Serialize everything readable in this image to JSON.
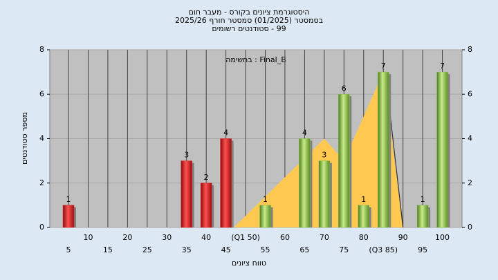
{
  "chart_data": {
    "type": "bar",
    "title_lines": [
      "היסטוגרמת ציונים בקורס - מעבר חום",
      "בסמסטר (01/2025) סמסטר חורף 2025/26",
      "99 - סטודנטים רשומים"
    ],
    "annotation": "Final_B : בחשימה",
    "x_label": "טווח ציונים",
    "y_label": "מספר סטודנטים",
    "xlim": [
      0.25,
      105
    ],
    "xticks": [
      5,
      10,
      15,
      20,
      25,
      30,
      35,
      40,
      45,
      {
        "value": 50,
        "label": "(Q1 50)"
      },
      55,
      60,
      65,
      70,
      75,
      80,
      {
        "value": 85,
        "label": "(Q3 85)"
      },
      90,
      95,
      100
    ],
    "ylim": [
      0,
      8
    ],
    "yticks": [
      0,
      2,
      4,
      6,
      8
    ],
    "y2lim": [
      0,
      8
    ],
    "y2ticks": [
      0,
      2,
      4,
      6,
      8
    ],
    "grid": true,
    "series": [
      {
        "color": "#e02828",
        "x": [
          5,
          35,
          40,
          45
        ],
        "values": [
          1,
          3,
          2,
          4
        ]
      },
      {
        "color": "#8cc04a",
        "x": [
          55,
          65,
          70,
          75,
          80,
          85,
          95,
          100
        ],
        "values": [
          1,
          4,
          3,
          6,
          1,
          7,
          1,
          7
        ]
      }
    ],
    "area": {
      "color": "#ffc850",
      "x": [
        47,
        70,
        75,
        85,
        90
      ],
      "values": [
        0,
        4,
        3,
        7,
        0
      ]
    },
    "line": {
      "color": "#333333",
      "x": [
        85.5,
        90
      ],
      "values": [
        7,
        0
      ]
    }
  }
}
